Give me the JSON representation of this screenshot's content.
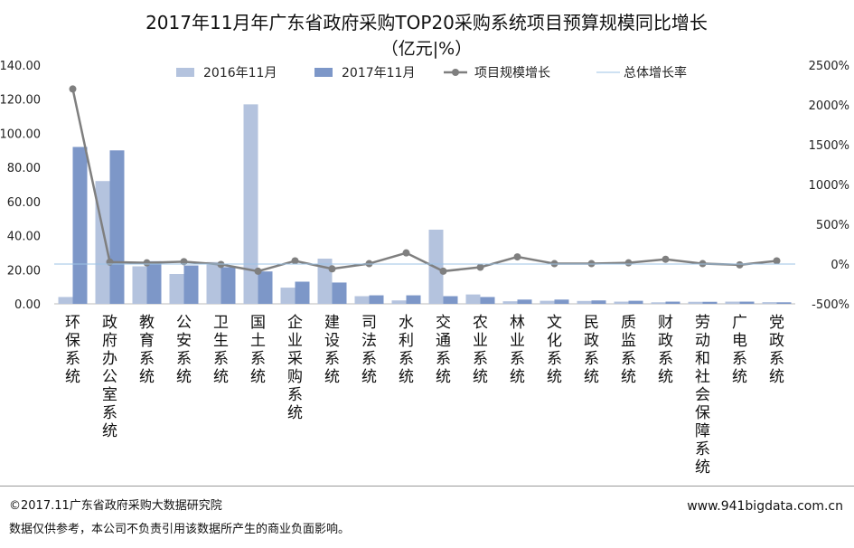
{
  "chart_data": {
    "type": "bar",
    "title": "2017年11月年广东省政府采购TOP20采购系统项目预算规模同比增长",
    "subtitle": "（亿元|%）",
    "categories": [
      "环保系统",
      "政府办公室系统",
      "教育系统",
      "公安系统",
      "卫生系统",
      "国土系统",
      "企业采购系统",
      "建设系统",
      "司法系统",
      "水利系统",
      "交通系统",
      "农业系统",
      "林业系统",
      "文化系统",
      "民政系统",
      "质监系统",
      "财政系统",
      "劳动和社会保障系统",
      "广电系统",
      "党政系统"
    ],
    "series": [
      {
        "name": "2016年11月",
        "type": "bar",
        "axis": "left",
        "color": "#b4c3de",
        "values": [
          4,
          72,
          22,
          17.5,
          24.5,
          117,
          9.5,
          26.5,
          4.5,
          2,
          43.5,
          5.5,
          1.5,
          1.8,
          1.7,
          1.3,
          0.9,
          1.2,
          1.3,
          1
        ]
      },
      {
        "name": "2017年11月",
        "type": "bar",
        "axis": "left",
        "color": "#7d97c8",
        "values": [
          92,
          90,
          25,
          22.5,
          21.5,
          19,
          13,
          12.5,
          5,
          5,
          4.5,
          4,
          2.5,
          2.5,
          2,
          1.8,
          1.3,
          1.2,
          1.3,
          0.9
        ]
      },
      {
        "name": "项目规模增长",
        "type": "line",
        "axis": "right",
        "color": "#7f7f7f",
        "values": [
          2200,
          25,
          15,
          30,
          -5,
          -90,
          40,
          -60,
          5,
          140,
          -90,
          -40,
          90,
          5,
          5,
          15,
          60,
          5,
          -10,
          40
        ]
      },
      {
        "name": "总体增长率",
        "type": "line",
        "axis": "right",
        "color": "#9dc3e6",
        "values": [
          0,
          0,
          0,
          0,
          0,
          0,
          0,
          0,
          0,
          0,
          0,
          0,
          0,
          0,
          0,
          0,
          0,
          0,
          0,
          0
        ]
      }
    ],
    "y_left": {
      "min": 0,
      "max": 140,
      "ticks": [
        "0.00",
        "20.00",
        "40.00",
        "60.00",
        "80.00",
        "100.00",
        "120.00",
        "140.00"
      ]
    },
    "y_right": {
      "min": -500,
      "max": 2500,
      "ticks": [
        "-500%",
        "0%",
        "500%",
        "1000%",
        "1500%",
        "2000%",
        "2500%"
      ]
    },
    "legend_position": "top",
    "grid": false
  },
  "footer": {
    "copyright": "©2017.11广东省政府采购大数据研究院",
    "disclaimer": "数据仅供参考，本公司不负责引用该数据所产生的商业负面影响。",
    "website": "www.941bigdata.com.cn"
  }
}
